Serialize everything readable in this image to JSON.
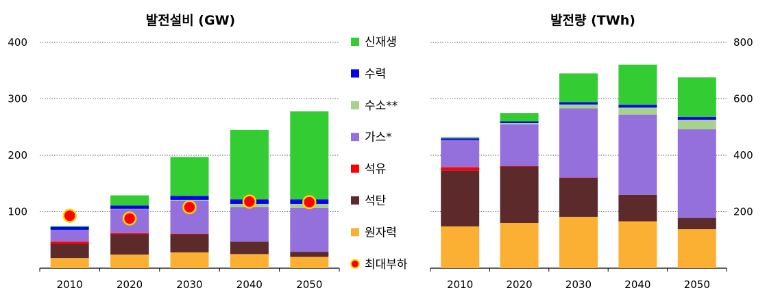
{
  "chart_data": [
    {
      "type": "bar",
      "stacked": true,
      "title": "발전설비 (GW)",
      "categories": [
        "2010",
        "2020",
        "2030",
        "2040",
        "2050"
      ],
      "ylim": [
        0,
        400
      ],
      "yticks": [
        "100",
        "200",
        "300",
        "400"
      ],
      "y_axis_side": "left",
      "grid": "horizontal dotted",
      "series": [
        {
          "name": "원자력",
          "values": [
            18,
            24,
            28,
            25,
            20
          ]
        },
        {
          "name": "석탄",
          "values": [
            25,
            36,
            32,
            22,
            9
          ]
        },
        {
          "name": "석유",
          "values": [
            4,
            2,
            1,
            0,
            0
          ]
        },
        {
          "name": "가스*",
          "values": [
            21,
            42,
            58,
            61,
            78
          ]
        },
        {
          "name": "수소**",
          "values": [
            0,
            1,
            2,
            6,
            7
          ]
        },
        {
          "name": "수력",
          "values": [
            5,
            6,
            7,
            8,
            8
          ]
        },
        {
          "name": "신재생",
          "values": [
            2,
            18,
            69,
            123,
            156
          ]
        }
      ],
      "peak_load": {
        "name": "최대부하",
        "values": [
          93,
          88,
          108,
          118,
          117
        ]
      }
    },
    {
      "type": "bar",
      "stacked": true,
      "title": "발전량 (TWh)",
      "categories": [
        "2010",
        "2020",
        "2030",
        "2040",
        "2050"
      ],
      "ylim": [
        0,
        800
      ],
      "yticks": [
        "200",
        "400",
        "600",
        "800"
      ],
      "y_axis_side": "right",
      "grid": "horizontal dotted",
      "series": [
        {
          "name": "원자력",
          "values": [
            148,
            160,
            182,
            166,
            138
          ]
        },
        {
          "name": "석탄",
          "values": [
            198,
            200,
            138,
            94,
            40
          ]
        },
        {
          "name": "석유",
          "values": [
            12,
            2,
            1,
            0,
            0
          ]
        },
        {
          "name": "가스*",
          "values": [
            96,
            148,
            245,
            284,
            314
          ]
        },
        {
          "name": "수소**",
          "values": [
            0,
            4,
            14,
            25,
            34
          ]
        },
        {
          "name": "수력",
          "values": [
            6,
            6,
            8,
            10,
            10
          ]
        },
        {
          "name": "신재생",
          "values": [
            4,
            30,
            102,
            142,
            140
          ]
        }
      ]
    }
  ],
  "legend": [
    {
      "label": "신재생",
      "color": "#33cc33",
      "marker": "square"
    },
    {
      "label": "수력",
      "color": "#0000ee",
      "marker": "square"
    },
    {
      "label": "수소**",
      "color": "#a9d18e",
      "marker": "square"
    },
    {
      "label": "가스*",
      "color": "#9370db",
      "marker": "square"
    },
    {
      "label": "석유",
      "color": "#ff0000",
      "marker": "square"
    },
    {
      "label": "석탄",
      "color": "#5c2a2a",
      "marker": "square"
    },
    {
      "label": "원자력",
      "color": "#fbb034",
      "marker": "square"
    },
    {
      "label": "최대부하",
      "color": "#ff0000",
      "marker": "circle",
      "edge_color": "#ffd700"
    }
  ],
  "colors": {
    "원자력": "#fbb034",
    "석탄": "#5c2a2a",
    "석유": "#ff0000",
    "가스*": "#9370db",
    "수소**": "#a9d18e",
    "수력": "#0000ee",
    "신재생": "#33cc33"
  }
}
